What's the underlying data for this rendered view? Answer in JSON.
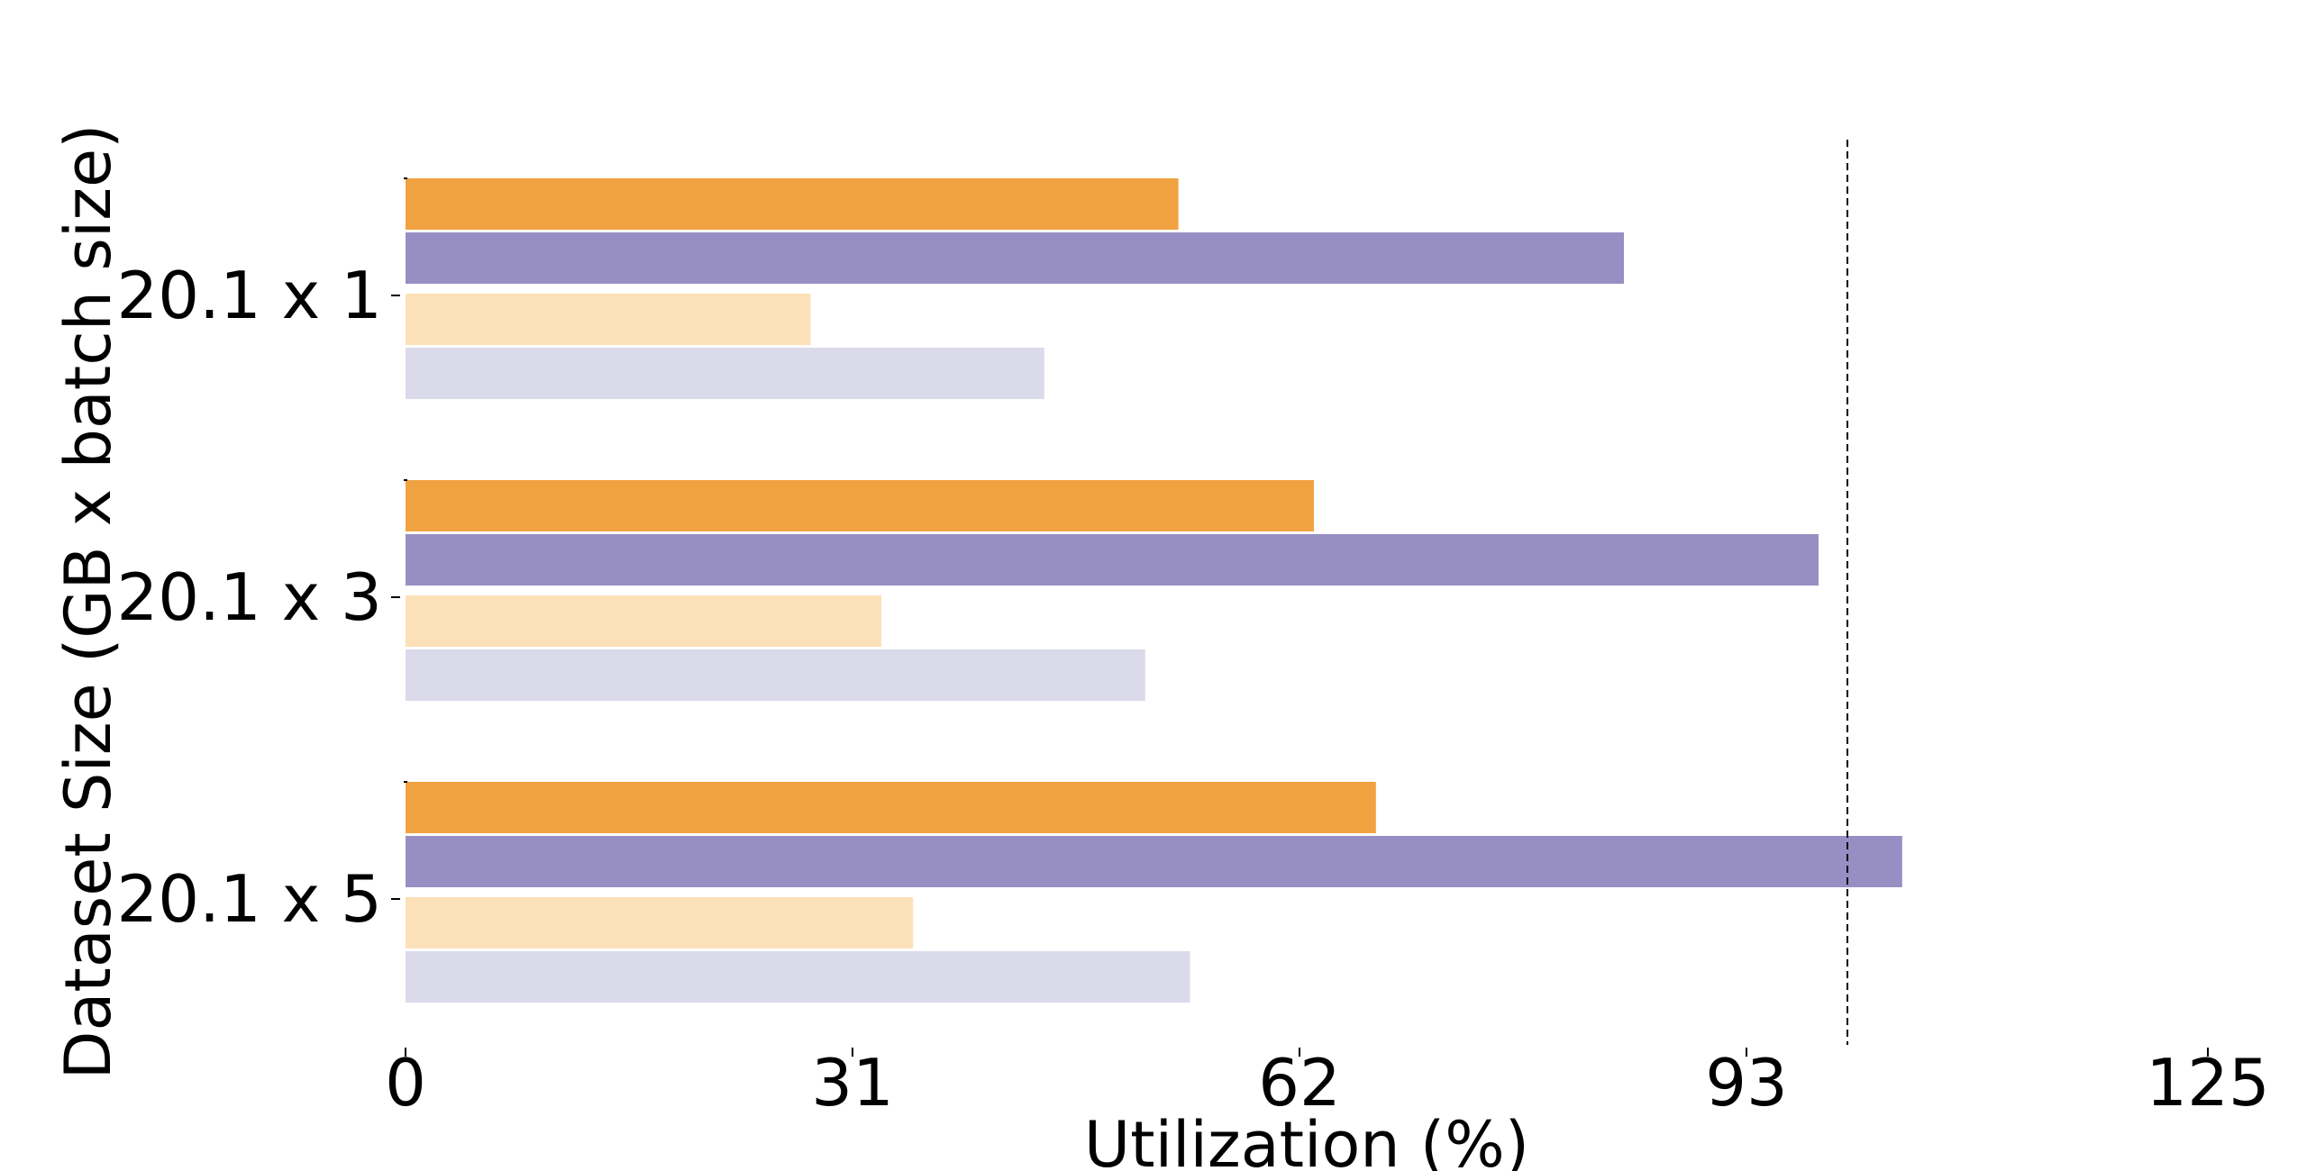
{
  "chart_data": {
    "type": "bar",
    "orientation": "horizontal",
    "title": "",
    "xlabel": "Utilization (%)",
    "ylabel": "Dataset Size (GB x batch size)",
    "categories": [
      "20.1 x 1",
      "20.1 x 3",
      "20.1 x 5"
    ],
    "xlim": [
      0,
      125
    ],
    "xticks": [
      "0",
      "31",
      "62",
      "93",
      "125"
    ],
    "grid": false,
    "legend": "none",
    "reference_line": {
      "x": 100,
      "style": "dashed",
      "color": "#000000"
    },
    "series": [
      {
        "values": [
          53.6,
          63.0,
          67.3
        ],
        "color": "#f0a241"
      },
      {
        "values": [
          84.5,
          98.0,
          103.8
        ],
        "color": "#978fc3"
      },
      {
        "values": [
          28.1,
          33.0,
          35.2
        ],
        "color": "#fce0b8"
      },
      {
        "values": [
          44.3,
          51.3,
          54.4
        ],
        "color": "#dadaea"
      }
    ]
  }
}
